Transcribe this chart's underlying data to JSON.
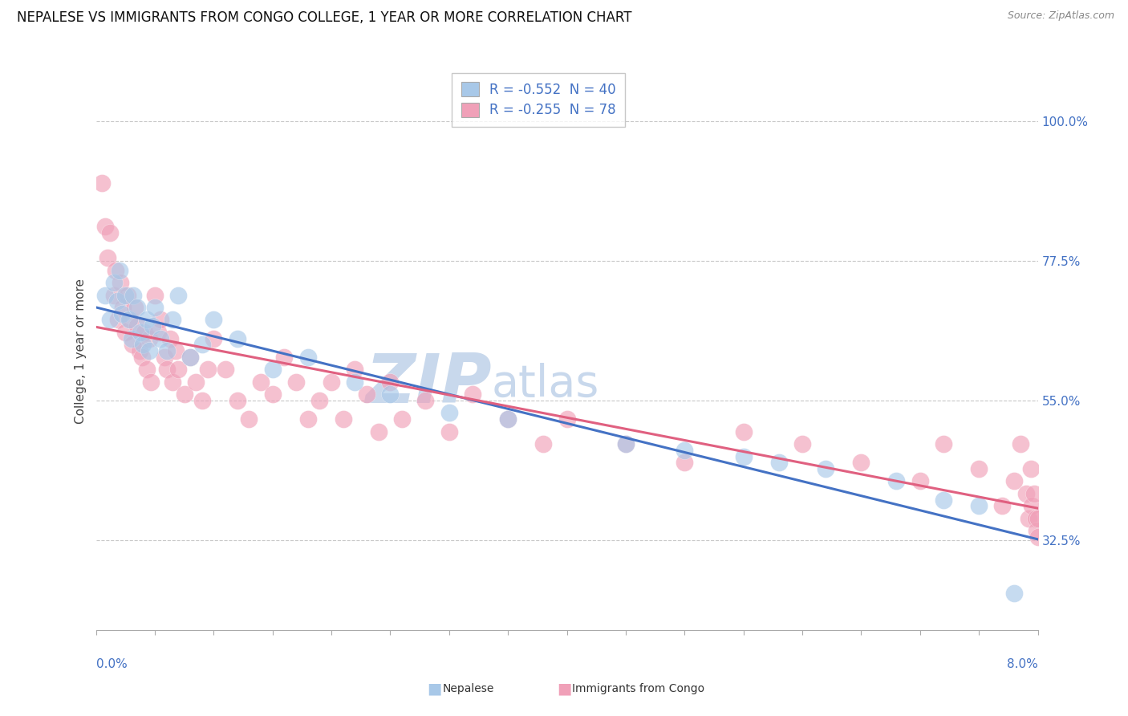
{
  "title": "NEPALESE VS IMMIGRANTS FROM CONGO COLLEGE, 1 YEAR OR MORE CORRELATION CHART",
  "source": "Source: ZipAtlas.com",
  "ylabel": "College, 1 year or more",
  "xlim": [
    0.0,
    8.0
  ],
  "ylim": [
    18.0,
    108.0
  ],
  "yticks": [
    32.5,
    55.0,
    77.5,
    100.0
  ],
  "ytick_labels": [
    "32.5%",
    "55.0%",
    "77.5%",
    "100.0%"
  ],
  "nepalese_R": -0.552,
  "nepalese_N": 40,
  "congo_R": -0.255,
  "congo_N": 78,
  "nepalese_color": "#A8C8E8",
  "congo_color": "#F0A0B8",
  "nepalese_line_color": "#4472C4",
  "congo_line_color": "#E06080",
  "background_color": "#FFFFFF",
  "grid_color": "#C8C8C8",
  "watermark_zip": "ZIP",
  "watermark_atlas": "atlas",
  "watermark_color_zip": "#C8D8EC",
  "watermark_color_atlas": "#C8D8EC",
  "title_fontsize": 12,
  "axis_label_fontsize": 11,
  "tick_fontsize": 11,
  "right_tick_color": "#4472C4",
  "nepalese_x": [
    0.08,
    0.12,
    0.15,
    0.18,
    0.2,
    0.22,
    0.25,
    0.28,
    0.3,
    0.32,
    0.35,
    0.38,
    0.4,
    0.43,
    0.45,
    0.48,
    0.5,
    0.55,
    0.6,
    0.65,
    0.7,
    0.8,
    0.9,
    1.0,
    1.2,
    1.5,
    1.8,
    2.2,
    2.5,
    3.0,
    3.5,
    4.5,
    5.0,
    5.5,
    5.8,
    6.2,
    6.8,
    7.2,
    7.5,
    7.8
  ],
  "nepalese_y": [
    72,
    68,
    74,
    71,
    76,
    69,
    72,
    68,
    65,
    72,
    70,
    66,
    64,
    68,
    63,
    67,
    70,
    65,
    63,
    68,
    72,
    62,
    64,
    68,
    65,
    60,
    62,
    58,
    56,
    53,
    52,
    48,
    47,
    46,
    45,
    44,
    42,
    39,
    38,
    24
  ],
  "congo_x": [
    0.05,
    0.08,
    0.1,
    0.12,
    0.15,
    0.17,
    0.19,
    0.21,
    0.23,
    0.25,
    0.27,
    0.29,
    0.31,
    0.33,
    0.35,
    0.37,
    0.39,
    0.41,
    0.43,
    0.45,
    0.47,
    0.5,
    0.53,
    0.55,
    0.58,
    0.6,
    0.63,
    0.65,
    0.68,
    0.7,
    0.75,
    0.8,
    0.85,
    0.9,
    0.95,
    1.0,
    1.1,
    1.2,
    1.3,
    1.4,
    1.5,
    1.6,
    1.7,
    1.8,
    1.9,
    2.0,
    2.1,
    2.2,
    2.3,
    2.4,
    2.5,
    2.6,
    2.8,
    3.0,
    3.2,
    3.5,
    3.8,
    4.0,
    4.5,
    5.0,
    5.5,
    6.0,
    6.5,
    7.0,
    7.2,
    7.5,
    7.7,
    7.8,
    7.85,
    7.9,
    7.92,
    7.94,
    7.95,
    7.97,
    7.98,
    7.99,
    8.0,
    8.0
  ],
  "congo_y": [
    90,
    83,
    78,
    82,
    72,
    76,
    68,
    74,
    70,
    66,
    72,
    68,
    64,
    70,
    67,
    63,
    62,
    66,
    60,
    65,
    58,
    72,
    66,
    68,
    62,
    60,
    65,
    58,
    63,
    60,
    56,
    62,
    58,
    55,
    60,
    65,
    60,
    55,
    52,
    58,
    56,
    62,
    58,
    52,
    55,
    58,
    52,
    60,
    56,
    50,
    58,
    52,
    55,
    50,
    56,
    52,
    48,
    52,
    48,
    45,
    50,
    48,
    45,
    42,
    48,
    44,
    38,
    42,
    48,
    40,
    36,
    44,
    38,
    40,
    36,
    34,
    33,
    36
  ]
}
